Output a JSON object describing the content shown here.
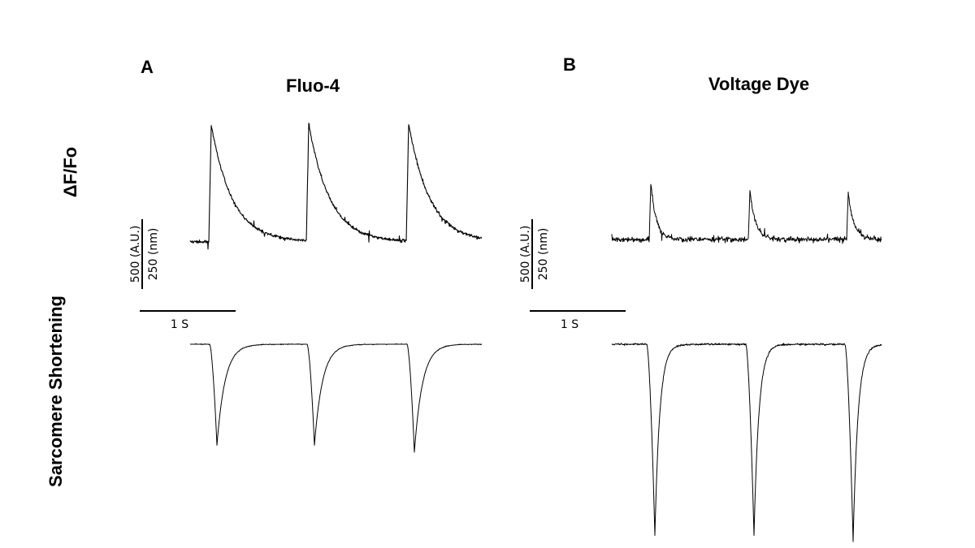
{
  "row_labels": {
    "top": "ΔF/Fo",
    "bottom": "Sarcomere Shortening"
  },
  "colors": {
    "trace": "#000000",
    "background": "#ffffff"
  },
  "chart_data": [
    {
      "panel": "A",
      "title": "Fluo-4",
      "type": "line",
      "scale_bar": {
        "y_fluorescence": "500 (A.U.)",
        "y_length": "250 (nm)",
        "x_time": "1 S"
      },
      "traces": {
        "fluorescence": {
          "beats": 3,
          "baseline": 0,
          "peak": 0.95,
          "shape": "fast rise, slow exponential decay",
          "noise": "moderate"
        },
        "sarcomere_shortening": {
          "beats": 3,
          "baseline": 0,
          "minima": [
            -0.87,
            -0.87,
            -0.93
          ]
        }
      }
    },
    {
      "panel": "B",
      "title": "Voltage Dye",
      "type": "line",
      "scale_bar": {
        "y_fluorescence": "500 (A.U.)",
        "y_length": "250 (nm)",
        "x_time": "1 S"
      },
      "traces": {
        "fluorescence": {
          "beats": 3,
          "baseline": 0,
          "peak": [
            0.45,
            0.4,
            0.38
          ],
          "shape": "narrow spike, fast decay",
          "noise": "high"
        },
        "sarcomere_shortening": {
          "beats": 3,
          "baseline": 0,
          "minima": [
            -1.65,
            -1.65,
            -1.7
          ]
        }
      }
    }
  ]
}
